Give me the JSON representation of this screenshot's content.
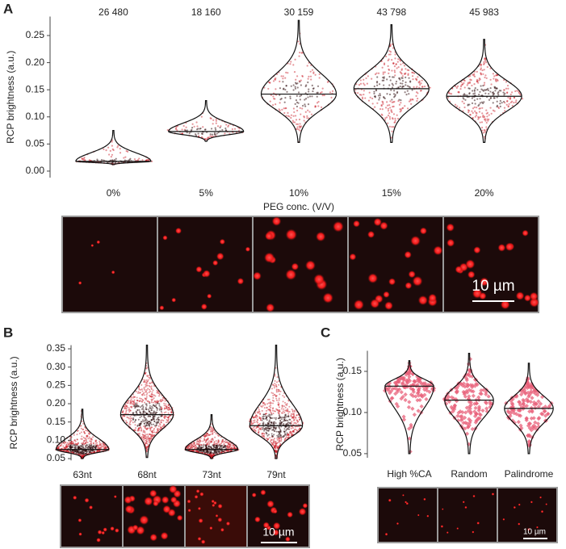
{
  "chart_data": [
    {
      "type": "violin",
      "panel": "A",
      "ylabel": "RCP brightness (a.u.)",
      "xlabel": "PEG conc. (V/V)",
      "categories": [
        "0%",
        "5%",
        "10%",
        "15%",
        "20%"
      ],
      "n": [
        26480,
        18160,
        30159,
        43798,
        45983
      ],
      "n_labels": [
        "26 480",
        "18 160",
        "30 159",
        "43 798",
        "45 983"
      ],
      "median": [
        0.018,
        0.073,
        0.142,
        0.152,
        0.138
      ],
      "min": [
        0.012,
        0.055,
        0.053,
        0.053,
        0.053
      ],
      "max": [
        0.075,
        0.13,
        0.278,
        0.27,
        0.243
      ],
      "color": "#c8141e",
      "ylim": [
        -0.012,
        0.285
      ],
      "yticks": [
        {
          "value": 0,
          "label": "0.00"
        },
        {
          "value": 0.05,
          "label": "0.05"
        },
        {
          "value": 0.1,
          "label": "0.10"
        },
        {
          "value": 0.15,
          "label": "0.15"
        },
        {
          "value": 0.2,
          "label": "0.20"
        },
        {
          "value": 0.25,
          "label": "0.25"
        }
      ],
      "scale_bar": "10 µm"
    },
    {
      "type": "violin",
      "panel": "B",
      "ylabel": "RCP brightness (a.u.)",
      "categories": [
        "63nt",
        "68nt",
        "73nt",
        "79nt"
      ],
      "median": [
        0.075,
        0.17,
        0.075,
        0.14
      ],
      "min": [
        0.05,
        0.053,
        0.05,
        0.05
      ],
      "max": [
        0.185,
        0.36,
        0.17,
        0.36
      ],
      "color": "#c8141e",
      "ylim": [
        0.045,
        0.36
      ],
      "yticks": [
        0.05,
        {
          "value": 0.1,
          "label": "0.10"
        },
        0.15,
        {
          "value": 0.2,
          "label": "0.20"
        },
        0.25,
        {
          "value": 0.3,
          "label": "0.30"
        },
        0.35
      ],
      "scale_bar": "10 µm"
    },
    {
      "type": "violin",
      "panel": "C",
      "ylabel": "RCP brightness (a.u.)",
      "categories": [
        "High %CA",
        "Random",
        "Palindrome"
      ],
      "median": [
        0.132,
        0.115,
        0.105
      ],
      "min": [
        0.05,
        0.05,
        0.05
      ],
      "max": [
        0.163,
        0.172,
        0.16
      ],
      "color": "#e8607a",
      "ylim": [
        0.045,
        0.175
      ],
      "yticks": [
        0.05,
        {
          "value": 0.1,
          "label": "0.10"
        },
        0.15
      ],
      "scale_bar": "10 µm"
    }
  ]
}
